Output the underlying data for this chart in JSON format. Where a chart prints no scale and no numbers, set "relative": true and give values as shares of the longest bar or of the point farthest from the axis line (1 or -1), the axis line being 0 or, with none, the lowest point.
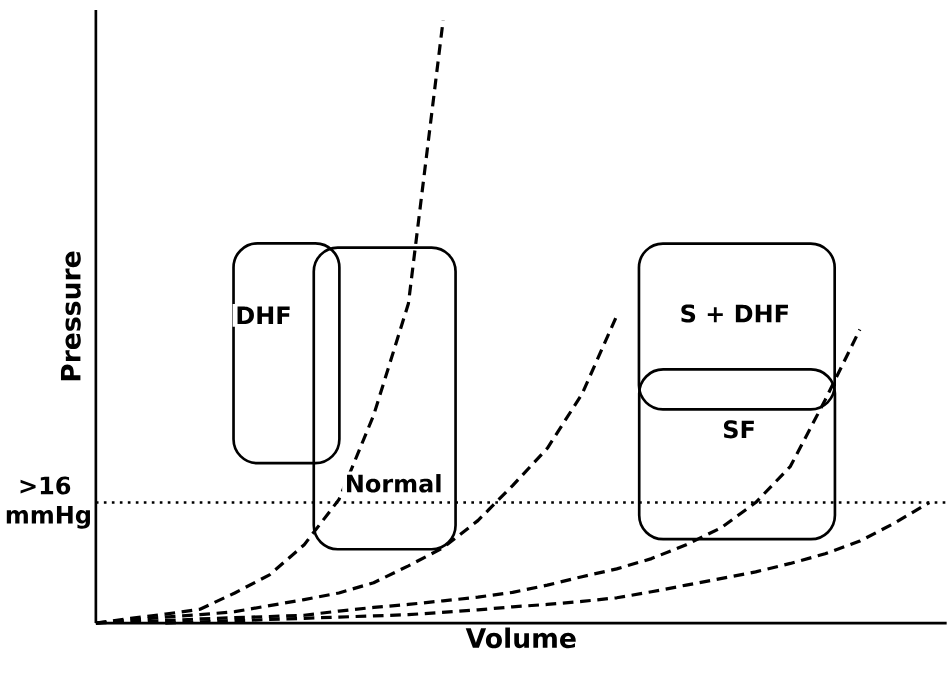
{
  "chart_data": {
    "type": "line",
    "relative": true,
    "xlabel": "Volume",
    "ylabel": "Pressure",
    "line_style": "dashed",
    "marker": "none",
    "categories": [
      null,
      null,
      null,
      null,
      null,
      null,
      null,
      null,
      null,
      null,
      null,
      null,
      null,
      null,
      null,
      null,
      null,
      null,
      null,
      null,
      null,
      null,
      null,
      null,
      null
    ],
    "series": [
      {
        "color": "#000000",
        "values": [
          0,
          0.008,
          0.015,
          0.023,
          0.05,
          0.08,
          0.13,
          0.205,
          0.345,
          0.53,
          1.0,
          null,
          null,
          null,
          null,
          null,
          null,
          null,
          null,
          null,
          null,
          null,
          null,
          null,
          null
        ]
      },
      {
        "color": "#000000",
        "values": [
          0,
          0.005,
          0.01,
          0.014,
          0.019,
          0.029,
          0.039,
          0.05,
          0.067,
          0.095,
          0.125,
          0.17,
          0.228,
          0.29,
          0.38,
          0.51,
          null,
          null,
          null,
          null,
          null,
          null,
          null,
          null,
          null
        ]
      },
      {
        "color": "#000000",
        "values": [
          0,
          0.002,
          0.004,
          0.007,
          0.009,
          0.011,
          0.013,
          0.02,
          0.026,
          0.031,
          0.037,
          0.043,
          0.051,
          0.063,
          0.077,
          0.09,
          0.107,
          0.13,
          0.158,
          0.2,
          0.26,
          0.37,
          0.487,
          null,
          null
        ]
      },
      {
        "color": "#000000",
        "values": [
          null,
          null,
          0,
          0.002,
          0.004,
          0.006,
          0.008,
          0.01,
          0.012,
          0.014,
          0.018,
          0.022,
          0.027,
          0.031,
          0.036,
          0.042,
          0.052,
          0.063,
          0.074,
          0.085,
          0.099,
          0.115,
          0.136,
          0.166,
          0.2
        ]
      }
    ],
    "ref_lines": [
      {
        "axis": "y",
        "value": 0.2,
        "label": ">16 mmHg",
        "line_style": "dotted",
        "color": "#000000"
      }
    ],
    "annotations": [
      "DHF",
      "Normal",
      "S + DHF",
      "SF"
    ]
  }
}
